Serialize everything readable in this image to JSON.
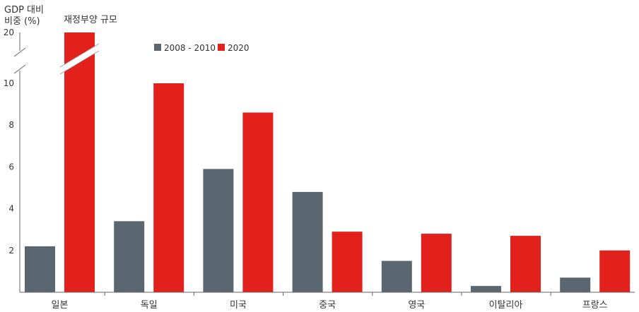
{
  "chart_data": {
    "type": "bar",
    "ylabel_lines": [
      "GDP 대비",
      "비중 (%)"
    ],
    "annotation": "재정부양 규모",
    "categories": [
      "일본",
      "독일",
      "미국",
      "중국",
      "영국",
      "이탈리아",
      "프랑스"
    ],
    "series": [
      {
        "name": "2008 - 2010",
        "color": "#5b6770",
        "values": [
          2.2,
          3.4,
          5.9,
          4.8,
          1.5,
          0.3,
          0.7
        ]
      },
      {
        "name": "2020",
        "color": "#e3211c",
        "values": [
          21.0,
          10.0,
          8.6,
          2.9,
          2.8,
          2.7,
          2.0
        ]
      }
    ],
    "yticks": [
      2,
      4,
      6,
      8,
      10,
      20
    ],
    "ylim": [
      0,
      10.4
    ],
    "axis_break": {
      "upper_tick": 20,
      "note": "broken axis; Japan 2020 bar exceeds 10"
    },
    "legend_position": "top-left",
    "grid": false
  }
}
